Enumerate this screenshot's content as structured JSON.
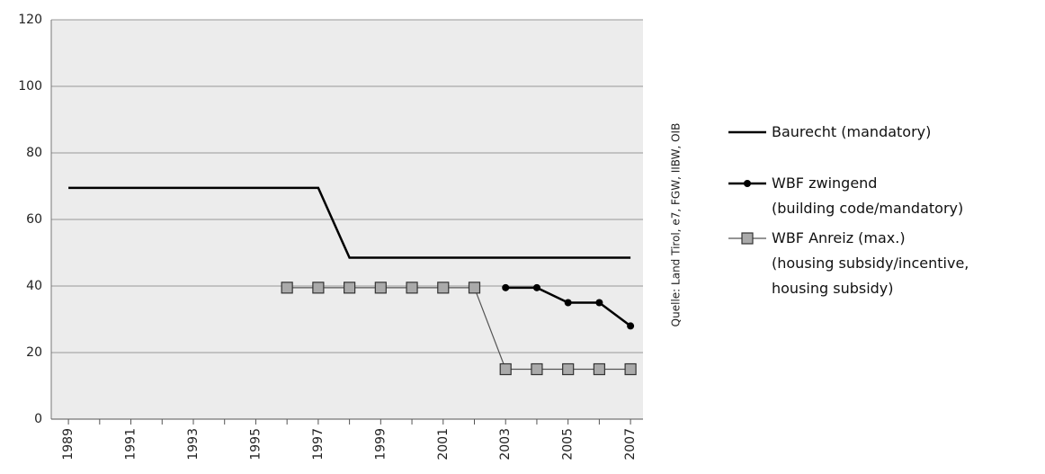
{
  "chart_data": {
    "type": "line",
    "source": "Quelle: Land Tirol, e7, FGW, IIBW, OIB",
    "xlim": [
      1988.45,
      2007.4
    ],
    "xticks": [
      1989,
      1991,
      1993,
      1995,
      1997,
      1999,
      2001,
      2003,
      2005,
      2007
    ],
    "xminorticks": [
      1990,
      1992,
      1994,
      1996,
      1998,
      2000,
      2002,
      2004,
      2006
    ],
    "ylim": [
      0,
      120
    ],
    "yticks": [
      0,
      20,
      40,
      60,
      80,
      100,
      120
    ],
    "grid": true,
    "series": [
      {
        "name": "Baurecht  (mandatory)",
        "color": "#000000",
        "marker": "none",
        "x": [
          1989,
          1997,
          1998,
          2007
        ],
        "values": [
          69.5,
          69.5,
          48.5,
          48.5
        ]
      },
      {
        "name": "WBF zwingend\n(building code/mandatory)",
        "color": "#000000",
        "marker": "circle",
        "x": [
          2003,
          2004,
          2005,
          2006,
          2007
        ],
        "values": [
          39.5,
          39.5,
          35,
          35,
          28
        ]
      },
      {
        "name": "WBF Anreiz (max.)\n(housing subsidy/incentive,\nhousing subsidy)",
        "color": "#555555",
        "marker": "square",
        "x": [
          1996,
          1997,
          1998,
          1999,
          2000,
          2001,
          2002,
          2003,
          2004,
          2005,
          2006,
          2007
        ],
        "values": [
          39.5,
          39.5,
          39.5,
          39.5,
          39.5,
          39.5,
          39.5,
          15,
          15,
          15,
          15,
          15
        ]
      }
    ]
  }
}
